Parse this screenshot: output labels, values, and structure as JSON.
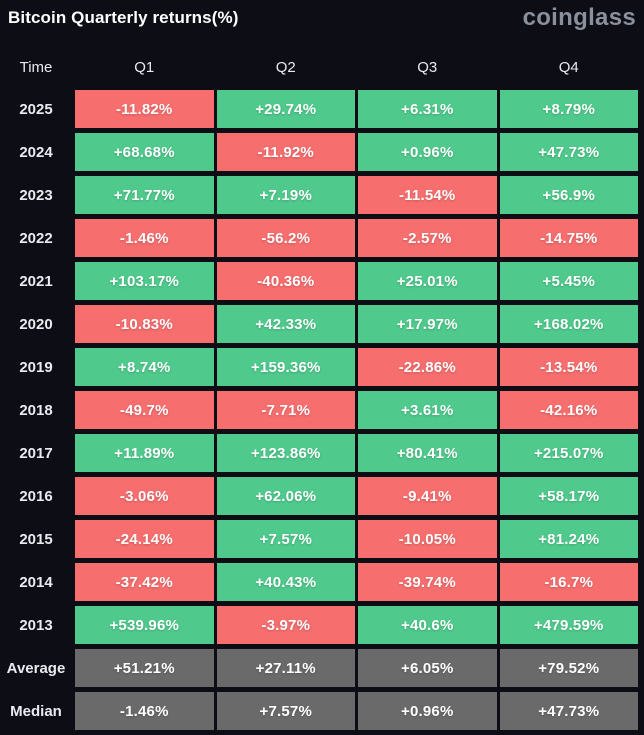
{
  "header": {
    "title": "Bitcoin Quarterly returns(%)",
    "logo_text": "coinglass"
  },
  "palette": {
    "background": "#0d0e15",
    "positive": "#4fc98c",
    "negative": "#f66e6e",
    "neutral": "#6a6a6a",
    "label_text": "#e9ebf0",
    "cell_text": "#ffffff",
    "logo_color": "#8a909b"
  },
  "table": {
    "columns": [
      "Time",
      "Q1",
      "Q2",
      "Q3",
      "Q4"
    ],
    "rows": [
      {
        "label": "2025",
        "type": "year",
        "values": [
          "-11.82%",
          "+29.74%",
          "+6.31%",
          "+8.79%"
        ]
      },
      {
        "label": "2024",
        "type": "year",
        "values": [
          "+68.68%",
          "-11.92%",
          "+0.96%",
          "+47.73%"
        ]
      },
      {
        "label": "2023",
        "type": "year",
        "values": [
          "+71.77%",
          "+7.19%",
          "-11.54%",
          "+56.9%"
        ]
      },
      {
        "label": "2022",
        "type": "year",
        "values": [
          "-1.46%",
          "-56.2%",
          "-2.57%",
          "-14.75%"
        ]
      },
      {
        "label": "2021",
        "type": "year",
        "values": [
          "+103.17%",
          "-40.36%",
          "+25.01%",
          "+5.45%"
        ]
      },
      {
        "label": "2020",
        "type": "year",
        "values": [
          "-10.83%",
          "+42.33%",
          "+17.97%",
          "+168.02%"
        ]
      },
      {
        "label": "2019",
        "type": "year",
        "values": [
          "+8.74%",
          "+159.36%",
          "-22.86%",
          "-13.54%"
        ]
      },
      {
        "label": "2018",
        "type": "year",
        "values": [
          "-49.7%",
          "-7.71%",
          "+3.61%",
          "-42.16%"
        ]
      },
      {
        "label": "2017",
        "type": "year",
        "values": [
          "+11.89%",
          "+123.86%",
          "+80.41%",
          "+215.07%"
        ]
      },
      {
        "label": "2016",
        "type": "year",
        "values": [
          "-3.06%",
          "+62.06%",
          "-9.41%",
          "+58.17%"
        ]
      },
      {
        "label": "2015",
        "type": "year",
        "values": [
          "-24.14%",
          "+7.57%",
          "-10.05%",
          "+81.24%"
        ]
      },
      {
        "label": "2014",
        "type": "year",
        "values": [
          "-37.42%",
          "+40.43%",
          "-39.74%",
          "-16.7%"
        ]
      },
      {
        "label": "2013",
        "type": "year",
        "values": [
          "+539.96%",
          "-3.97%",
          "+40.6%",
          "+479.59%"
        ]
      },
      {
        "label": "Average",
        "type": "summary",
        "values": [
          "+51.21%",
          "+27.11%",
          "+6.05%",
          "+79.52%"
        ]
      },
      {
        "label": "Median",
        "type": "summary",
        "values": [
          "-1.46%",
          "+7.57%",
          "+0.96%",
          "+47.73%"
        ]
      }
    ]
  },
  "chart_data": {
    "type": "heatmap",
    "title": "Bitcoin Quarterly returns(%)",
    "columns": [
      "Q1",
      "Q2",
      "Q3",
      "Q4"
    ],
    "rows": [
      "2025",
      "2024",
      "2023",
      "2022",
      "2021",
      "2020",
      "2019",
      "2018",
      "2017",
      "2016",
      "2015",
      "2014",
      "2013",
      "Average",
      "Median"
    ],
    "values": [
      [
        -11.82,
        29.74,
        6.31,
        8.79
      ],
      [
        68.68,
        -11.92,
        0.96,
        47.73
      ],
      [
        71.77,
        7.19,
        -11.54,
        56.9
      ],
      [
        -1.46,
        -56.2,
        -2.57,
        -14.75
      ],
      [
        103.17,
        -40.36,
        25.01,
        5.45
      ],
      [
        -10.83,
        42.33,
        17.97,
        168.02
      ],
      [
        8.74,
        159.36,
        -22.86,
        -13.54
      ],
      [
        -49.7,
        -7.71,
        3.61,
        -42.16
      ],
      [
        11.89,
        123.86,
        80.41,
        215.07
      ],
      [
        -3.06,
        62.06,
        -9.41,
        58.17
      ],
      [
        -24.14,
        7.57,
        -10.05,
        81.24
      ],
      [
        -37.42,
        40.43,
        -39.74,
        -16.7
      ],
      [
        539.96,
        -3.97,
        40.6,
        479.59
      ],
      [
        51.21,
        27.11,
        6.05,
        79.52
      ],
      [
        -1.46,
        7.57,
        0.96,
        47.73
      ]
    ],
    "color_rule": "positive=green, negative=red, summary rows (Average/Median)=gray",
    "legend_position": "none",
    "grid": false
  }
}
